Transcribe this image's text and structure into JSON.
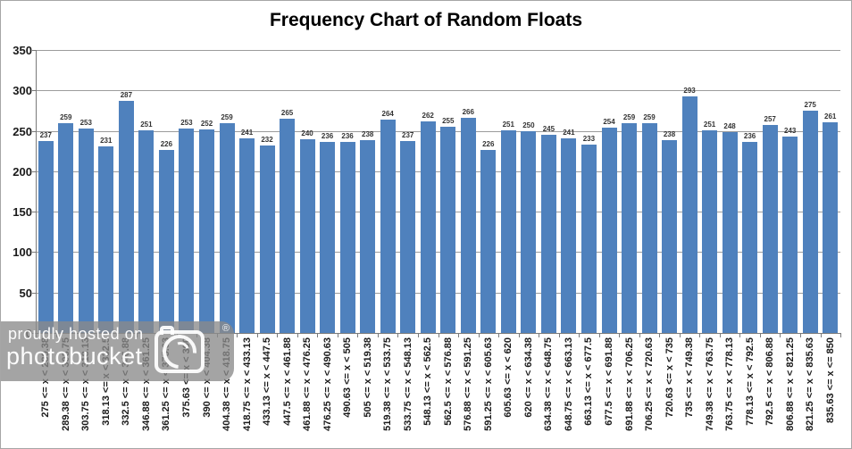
{
  "chart_data": {
    "type": "bar",
    "title": "Frequency Chart of Random Floats",
    "xlabel": "",
    "ylabel": "",
    "ylim": [
      0,
      350
    ],
    "yticks": [
      0,
      50,
      100,
      150,
      200,
      250,
      300,
      350
    ],
    "grid": true,
    "legend_position": "none",
    "data_labels": true,
    "categories": [
      "275 <= x < 289.38",
      "289.38 <= x < 303.75",
      "303.75 <= x < 318.13",
      "318.13 <= x < 332.5",
      "332.5 <= x < 346.88",
      "346.88 <= x < 361.25",
      "361.25 <= x < 375.63",
      "375.63 <= x < 390",
      "390 <= x < 404.38",
      "404.38 <= x < 418.75",
      "418.75 <= x < 433.13",
      "433.13 <= x < 447.5",
      "447.5 <= x < 461.88",
      "461.88 <= x < 476.25",
      "476.25 <= x < 490.63",
      "490.63 <= x < 505",
      "505 <= x < 519.38",
      "519.38 <= x < 533.75",
      "533.75 <= x < 548.13",
      "548.13 <= x < 562.5",
      "562.5 <= x < 576.88",
      "576.88 <= x < 591.25",
      "591.25 <= x < 605.63",
      "605.63 <= x < 620",
      "620 <= x < 634.38",
      "634.38 <= x < 648.75",
      "648.75 <= x < 663.13",
      "663.13 <= x < 677.5",
      "677.5 <= x < 691.88",
      "691.88 <= x < 706.25",
      "706.25 <= x < 720.63",
      "720.63 <= x < 735",
      "735 <= x < 749.38",
      "749.38 <= x < 763.75",
      "763.75 <= x < 778.13",
      "778.13 <= x < 792.5",
      "792.5 <= x < 806.88",
      "806.88 <= x < 821.25",
      "821.25 <= x < 835.63",
      "835.63 <= x <= 850"
    ],
    "values": [
      237,
      259,
      253,
      231,
      287,
      251,
      226,
      253,
      252,
      259,
      241,
      232,
      265,
      240,
      236,
      236,
      238,
      264,
      237,
      262,
      255,
      266,
      226,
      251,
      250,
      245,
      241,
      233,
      254,
      259,
      259,
      238,
      293,
      251,
      248,
      236,
      257,
      243,
      275,
      261
    ]
  },
  "colors": {
    "bar": "#4F81BD",
    "gridline": "#9c9c9c",
    "axis": "#7a7a7a",
    "label_text": "#1a1a1a"
  },
  "watermark": {
    "line1": "proudly hosted on",
    "line2": "photobucket",
    "registered": "®"
  }
}
